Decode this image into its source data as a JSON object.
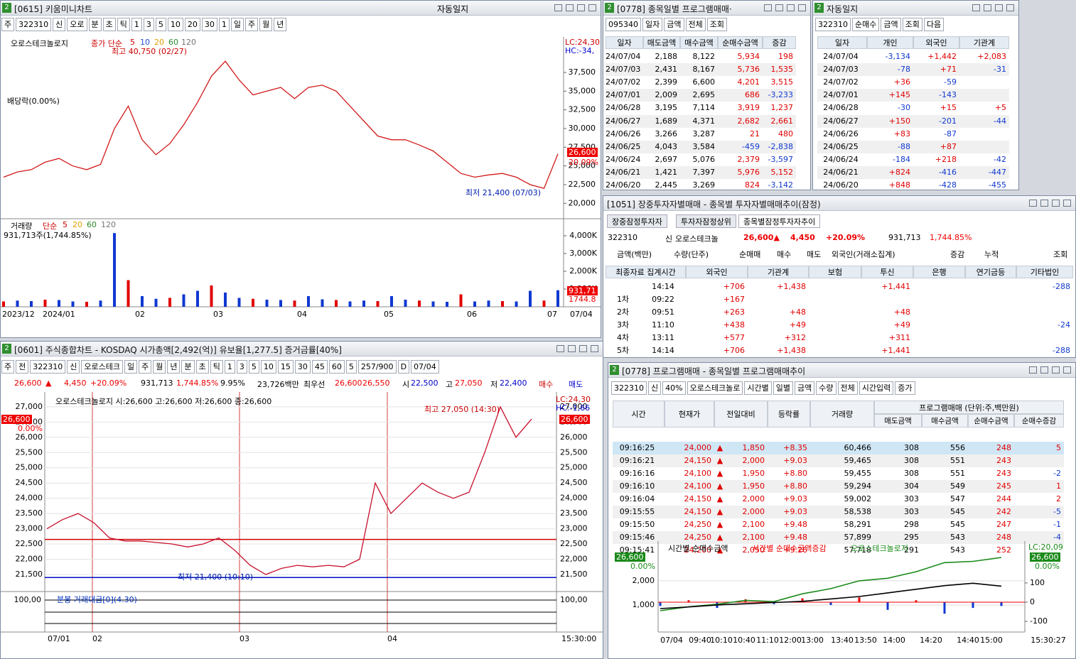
{
  "w1": {
    "badge": "2",
    "title": "[0615] 키움미니차트",
    "extra": "자동일지",
    "toolbar": [
      "주",
      "322310",
      "신",
      "오로",
      "분",
      "초",
      "틱",
      "1",
      "3",
      "5",
      "10",
      "20",
      "30",
      "1",
      "일",
      "주",
      "월",
      "년"
    ],
    "legend": "오로스테크놀로지",
    "ma_label": "종가 단순",
    "ma_periods": [
      "5",
      "10",
      "20",
      "60",
      "120"
    ],
    "high_note": "최고 40,750 (02/27)",
    "div_note": "배당락(0.00%)",
    "low_note": "최저 21,400 (07/03)",
    "lc": "LC:24,30",
    "hc": "HC:-34,",
    "last_price": "26,600",
    "last_pct": "20.09%",
    "ylim": [
      18700,
      42250
    ],
    "yticks": [
      {
        "value": 20000,
        "label": "20,000"
      },
      {
        "value": 22500,
        "label": "22,500"
      },
      {
        "value": 25000,
        "label": "25,000"
      },
      {
        "value": 27500,
        "label": "27,500"
      },
      {
        "value": 30000,
        "label": "30,000"
      },
      {
        "value": 32500,
        "label": "32,500"
      },
      {
        "value": 35000,
        "label": "35,000"
      },
      {
        "value": 37500,
        "label": "37,500"
      }
    ],
    "close_color": "#d21a1a",
    "close": [
      23500,
      24200,
      24500,
      25500,
      26000,
      25000,
      24500,
      25200,
      30000,
      33000,
      28500,
      26500,
      28000,
      30500,
      33500,
      37000,
      39000,
      36500,
      34500,
      35000,
      35500,
      34000,
      35500,
      35800,
      35000,
      33000,
      31000,
      29000,
      28500,
      28500,
      27800,
      27000,
      25500,
      24000,
      23500,
      23800,
      24000,
      23500,
      22500,
      22000,
      26600
    ],
    "vol_legend": "거래량",
    "vol_ma_label": "단순",
    "vol_ma": [
      "5",
      "20",
      "60",
      "120"
    ],
    "vol_note": "931,713주(1,744.85%)",
    "vol_ylim": [
      0,
      4960
    ],
    "vol_yticks": [
      {
        "value": 1000,
        "label": "1,000K"
      },
      {
        "value": 2000,
        "label": "2,000K"
      },
      {
        "value": 3000,
        "label": "3,000K"
      },
      {
        "value": 4000,
        "label": "4,000K"
      }
    ],
    "volume": [
      300,
      350,
      320,
      400,
      380,
      300,
      280,
      350,
      4150,
      1500,
      600,
      450,
      500,
      700,
      900,
      1200,
      800,
      500,
      450,
      400,
      380,
      350,
      600,
      420,
      380,
      300,
      350,
      320,
      600,
      400,
      350,
      300,
      280,
      700,
      300,
      350,
      320,
      300,
      900,
      350,
      931.713
    ],
    "vol_last": "931,71",
    "vol_last_pct": "1744.8",
    "xlabels": [
      "2023/12",
      "2024/01",
      "02",
      "03",
      "04",
      "05",
      "06",
      "07"
    ],
    "x_end": "07/04"
  },
  "w2": {
    "badge": "2",
    "title": "[0778] 종목일별 프로그램매매·",
    "toolbar": [
      "095340",
      "일자",
      "금액",
      "전체",
      "조회"
    ],
    "headers": [
      "일자",
      "매도금액",
      "매수금액",
      "순매수금액",
      "증감"
    ],
    "rows": [
      [
        "24/07/04",
        "2,188",
        "8,122",
        "5,934",
        "198"
      ],
      [
        "24/07/03",
        "2,431",
        "8,167",
        "5,736",
        "1,535"
      ],
      [
        "24/07/02",
        "2,399",
        "6,600",
        "4,201",
        "3,515"
      ],
      [
        "24/07/01",
        "2,009",
        "2,695",
        "686",
        "-3,233"
      ],
      [
        "24/06/28",
        "3,195",
        "7,114",
        "3,919",
        "1,237"
      ],
      [
        "24/06/27",
        "1,689",
        "4,371",
        "2,682",
        "2,661"
      ],
      [
        "24/06/26",
        "3,266",
        "3,287",
        "21",
        "480"
      ],
      [
        "24/06/25",
        "4,043",
        "3,584",
        "-459",
        "-2,838"
      ],
      [
        "24/06/24",
        "2,697",
        "5,076",
        "2,379",
        "-3,597"
      ],
      [
        "24/06/21",
        "1,421",
        "7,397",
        "5,976",
        "5,152"
      ],
      [
        "24/06/20",
        "2,445",
        "3,269",
        "824",
        "-3,142"
      ]
    ]
  },
  "w3": {
    "badge": "2",
    "title": "자동일지",
    "toolbar": [
      "322310",
      "순매수",
      "금액",
      "조회",
      "다음"
    ],
    "headers": [
      "일자",
      "개인",
      "외국인",
      "기관계"
    ],
    "rows": [
      [
        "24/07/04",
        "-3,134",
        "+1,442",
        "+2,083"
      ],
      [
        "24/07/03",
        "-78",
        "+71",
        "-31"
      ],
      [
        "24/07/02",
        "+36",
        "-59",
        null
      ],
      [
        "24/07/01",
        "+145",
        "-143",
        null
      ],
      [
        "24/06/28",
        "-30",
        "+15",
        "+5"
      ],
      [
        "24/06/27",
        "+150",
        "-201",
        "-44"
      ],
      [
        "24/06/26",
        "+83",
        "-87",
        null
      ],
      [
        "24/06/25",
        "-88",
        "+87",
        null
      ],
      [
        "24/06/24",
        "-184",
        "+218",
        "-42"
      ],
      [
        "24/06/21",
        "+824",
        "-416",
        "-447"
      ],
      [
        "24/06/20",
        "+848",
        "-428",
        "-455"
      ]
    ]
  },
  "w4": {
    "title": "[1051] 장중투자자별매매 - 종목별 투자자별매매추이(잠정)",
    "tabs": [
      "장중잠정투자자",
      "투자자잠정상위",
      "종목별잠정투자자추이"
    ],
    "info": [
      "322310",
      "신",
      "오로스테크놀",
      "26,600▲",
      "4,450",
      "+20.09%",
      "931,713",
      "1,744.85%"
    ],
    "options": [
      "금액(백만)",
      "수량(단주)",
      "순매매",
      "매수",
      "매도",
      "외국인(거래소집계)",
      "증감",
      "누적",
      "조회"
    ],
    "headers": [
      "최종자료 집계시간",
      "외국인",
      "기관계",
      "보험",
      "투신",
      "은행",
      "연기금등",
      "기타법인"
    ],
    "rows": [
      [
        null,
        "14:14",
        "+706",
        "+1,438",
        null,
        "+1,441",
        null,
        null,
        "-288"
      ],
      [
        "1차",
        "09:22",
        "+167",
        null,
        null,
        null,
        null,
        null,
        null
      ],
      [
        "2차",
        "09:51",
        "+263",
        "+48",
        null,
        "+48",
        null,
        null,
        null
      ],
      [
        "3차",
        "11:10",
        "+438",
        "+49",
        null,
        "+49",
        null,
        null,
        "-24"
      ],
      [
        "4차",
        "13:11",
        "+577",
        "+312",
        null,
        "+311",
        null,
        null,
        null
      ],
      [
        "5차",
        "14:14",
        "+706",
        "+1,438",
        null,
        "+1,441",
        null,
        null,
        "-288"
      ]
    ]
  },
  "w5": {
    "badge": "2",
    "title": "[0601] 주식종합차트 - KOSDAQ 시가총액[2,492(억)] 유보율[1,277.5] 증거금률[40%]",
    "toolbar": [
      "주",
      "전",
      "322310",
      "신",
      "오로스테크",
      "일",
      "주",
      "월",
      "년",
      "분",
      "초",
      "틱",
      "1",
      "3",
      "5",
      "10",
      "15",
      "30",
      "45",
      "60",
      "5",
      "257/900",
      "D",
      "07/04"
    ],
    "info": [
      "26,600",
      "▲",
      "4,450",
      "+20.09%",
      "931,713",
      "1,744.85%",
      "9.95%",
      "23,726백만",
      "최우선",
      "26,600",
      "26,550",
      "시",
      "22,500",
      "고",
      "27,050",
      "저",
      "22,400",
      "매수",
      "매도"
    ],
    "legend": "오로스테크놀로지 시:26,600 고:26,600 저:26,600 종:26,600",
    "high_note": "최고 27,050 (14:30)",
    "low_note": "최저 21,400 (10:10)",
    "lc": "LC:24,30",
    "hc": "HC:-1,66",
    "last_price": "26,600",
    "last_pct": "0.00%",
    "ylim": [
      21010,
      27370
    ],
    "yticks": [
      {
        "value": 21500,
        "label": "21,500"
      },
      {
        "value": 22000,
        "label": "22,000"
      },
      {
        "value": 22500,
        "label": "22,500"
      },
      {
        "value": 23000,
        "label": "23,000"
      },
      {
        "value": 23500,
        "label": "23,500"
      },
      {
        "value": 24000,
        "label": "24,000"
      },
      {
        "value": 24500,
        "label": "24,500"
      },
      {
        "value": 25000,
        "label": "25,000"
      },
      {
        "value": 25500,
        "label": "25,500"
      },
      {
        "value": 26000,
        "label": "26,000"
      },
      {
        "value": 26500,
        "label": "26,500"
      },
      {
        "value": 27000,
        "label": "27,000"
      }
    ],
    "reference_lines": [
      {
        "value": 22650,
        "color": "#d00000"
      },
      {
        "value": 21400,
        "color": "#0010c0"
      }
    ],
    "price_color": "#c8102e",
    "price": [
      23000,
      23300,
      23500,
      23200,
      22700,
      22600,
      22600,
      22550,
      22500,
      22400,
      22500,
      22700,
      22300,
      21800,
      21500,
      21700,
      21800,
      21750,
      21800,
      21750,
      22000,
      24500,
      23500,
      24000,
      24500,
      24200,
      24000,
      24200,
      25500,
      27000,
      26000,
      26600
    ],
    "lower_label": "분봉 거래대금[0](4.30)",
    "lower_tick": "100,00",
    "xlabels": [
      "07/01",
      "02",
      "03",
      "04"
    ],
    "x_end": "15:30:00"
  },
  "w6": {
    "badge": "2",
    "title": "[0778] 프로그램매매 - 종목일별 프로그램매매추이",
    "toolbar": [
      "322310",
      "신",
      "40%",
      "오로스테크놀로",
      "시간별",
      "일별",
      "금액",
      "수량",
      "전체",
      "시간입력",
      "증가"
    ],
    "headers": [
      "시간",
      "현재가",
      "전일대비",
      "등락률",
      "거래량"
    ],
    "group": "프로그램매매 (단위:주,백만원)",
    "subheaders": [
      "매도금액",
      "매수금액",
      "순매수금액",
      "순매수증감"
    ],
    "rows": [
      [
        "09:16:25",
        "24,000",
        "▲",
        "1,850",
        "+8.35",
        "60,466",
        "308",
        "556",
        "248",
        "5"
      ],
      [
        "09:16:21",
        "24,150",
        "▲",
        "2,000",
        "+9.03",
        "59,465",
        "308",
        "551",
        "243",
        null
      ],
      [
        "09:16:16",
        "24,100",
        "▲",
        "1,950",
        "+8.80",
        "59,455",
        "308",
        "551",
        "243",
        "-2"
      ],
      [
        "09:16:10",
        "24,100",
        "▲",
        "1,950",
        "+8.80",
        "59,294",
        "304",
        "549",
        "245",
        "1"
      ],
      [
        "09:16:04",
        "24,150",
        "▲",
        "2,000",
        "+9.03",
        "59,002",
        "303",
        "547",
        "244",
        "2"
      ],
      [
        "09:15:55",
        "24,150",
        "▲",
        "2,000",
        "+9.03",
        "58,538",
        "303",
        "545",
        "242",
        "-5"
      ],
      [
        "09:15:50",
        "24,250",
        "▲",
        "2,100",
        "+9.48",
        "58,291",
        "298",
        "545",
        "247",
        "-1"
      ],
      [
        "09:15:46",
        "24,250",
        "▲",
        "2,100",
        "+9.48",
        "57,899",
        "295",
        "543",
        "248",
        "-4"
      ],
      [
        "09:15:41",
        "24,200",
        "▲",
        "2,050",
        "+9.26",
        "57,718",
        "291",
        "543",
        "252",
        null
      ]
    ],
    "legend": [
      "시간별 순매수금액",
      "시간별 순매수금액증감",
      "오로스테크놀로지"
    ],
    "last_left": "26,600",
    "last_left_pct": "0.00%",
    "lc": "LC:20,09",
    "last_right": "26,600",
    "last_right_pct": "0.00%",
    "ylim": [
      -60,
      3350
    ],
    "yticks": [
      {
        "value": 1000,
        "label": "1,000"
      },
      {
        "value": 2000,
        "label": "2,000"
      }
    ],
    "y2lim": [
      -148,
      281
    ],
    "y2ticks": [
      -100,
      0,
      100
    ],
    "y3lim": [
      20970,
      27310
    ],
    "net_buy": [
      850,
      920,
      1000,
      1050,
      1100,
      1150,
      1250,
      1350,
      1500,
      1650,
      1800,
      1900,
      1780
    ],
    "price": [
      22500,
      22800,
      23000,
      23300,
      23200,
      23800,
      24200,
      24800,
      25000,
      25500,
      26200,
      26300,
      26600
    ],
    "delta": [
      -20,
      10,
      -30,
      15,
      -10,
      20,
      -15,
      25,
      -40,
      10,
      -60,
      -30,
      -20
    ],
    "xlabels": [
      "07/04",
      "09:40",
      "10:10",
      "10:40",
      "11:10",
      "12:00",
      "13:00",
      "13:40",
      "13:50",
      "14:00",
      "14:20",
      "14:40",
      "15:00",
      "15:30:27"
    ]
  }
}
